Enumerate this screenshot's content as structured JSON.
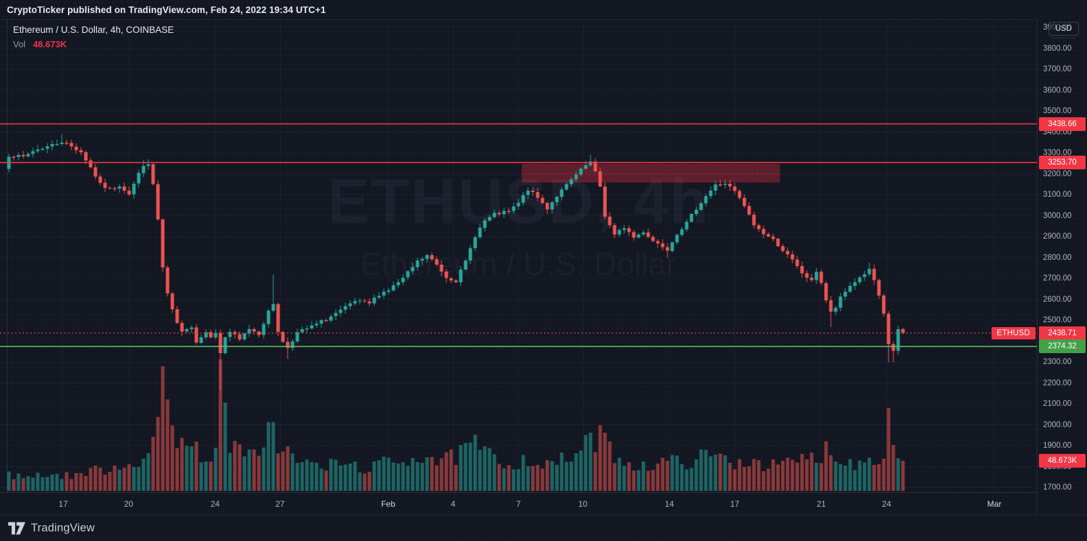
{
  "banner": {
    "text": "CryptoTicker published on TradingView.com, Feb 24, 2022 19:34 UTC+1"
  },
  "legend": {
    "title": "Ethereum / U.S. Dollar, 4h, COINBASE",
    "vol_label": "Vol",
    "vol_value": "48.673K"
  },
  "watermark": {
    "line1": "ETHUSD, 4h",
    "line2": "Ethereum / U.S. Dollar"
  },
  "footer": {
    "brand": "TradingView"
  },
  "axis": {
    "currency_button": "USD",
    "price_max": 3900,
    "price_min": 1700,
    "price_step": 100,
    "time_ticks": [
      {
        "label": "17",
        "i": 11.3
      },
      {
        "label": "20",
        "i": 24.9
      },
      {
        "label": "24",
        "i": 42.9
      },
      {
        "label": "27",
        "i": 56.4
      },
      {
        "label": "Feb",
        "i": 78.9,
        "month": true
      },
      {
        "label": "4",
        "i": 92.4
      },
      {
        "label": "7",
        "i": 106
      },
      {
        "label": "10",
        "i": 119.4
      },
      {
        "label": "14",
        "i": 137.4
      },
      {
        "label": "17",
        "i": 151
      },
      {
        "label": "21",
        "i": 169
      },
      {
        "label": "24",
        "i": 182.6
      },
      {
        "label": "Mar",
        "i": 205,
        "month": true
      }
    ]
  },
  "chart_data": {
    "type": "candlestick+volume",
    "symbol": "ETHUSD",
    "name": "Ethereum / U.S. Dollar",
    "interval": "4h",
    "exchange": "COINBASE",
    "currency": "USD",
    "last_close": 2438.71,
    "last_volume_display": "48.673K",
    "last_volume_k": 48.673,
    "ylim": [
      1700,
      3900
    ],
    "grid": true,
    "candle_count": 187,
    "close_anchors": [
      [
        0,
        3290
      ],
      [
        3,
        3280
      ],
      [
        5,
        3310
      ],
      [
        8,
        3330
      ],
      [
        11,
        3355
      ],
      [
        13,
        3330
      ],
      [
        15,
        3305
      ],
      [
        17,
        3230
      ],
      [
        19,
        3150
      ],
      [
        21,
        3125
      ],
      [
        23,
        3145
      ],
      [
        25,
        3105
      ],
      [
        27,
        3200
      ],
      [
        28,
        3245
      ],
      [
        29,
        3240
      ],
      [
        30,
        3150
      ],
      [
        31,
        2980
      ],
      [
        32,
        2750
      ],
      [
        33,
        2620
      ],
      [
        34,
        2550
      ],
      [
        35,
        2480
      ],
      [
        36,
        2440
      ],
      [
        37,
        2465
      ],
      [
        38,
        2470
      ],
      [
        39,
        2395
      ],
      [
        40,
        2420
      ],
      [
        41,
        2450
      ],
      [
        42,
        2425
      ],
      [
        43,
        2435
      ],
      [
        44,
        2345
      ],
      [
        45,
        2420
      ],
      [
        46,
        2445
      ],
      [
        48,
        2405
      ],
      [
        50,
        2460
      ],
      [
        52,
        2435
      ],
      [
        54,
        2540
      ],
      [
        55,
        2580
      ],
      [
        56,
        2450
      ],
      [
        57,
        2395
      ],
      [
        58,
        2370
      ],
      [
        60,
        2440
      ],
      [
        63,
        2470
      ],
      [
        66,
        2505
      ],
      [
        69,
        2545
      ],
      [
        72,
        2590
      ],
      [
        75,
        2580
      ],
      [
        77,
        2625
      ],
      [
        79,
        2645
      ],
      [
        82,
        2700
      ],
      [
        85,
        2780
      ],
      [
        87,
        2810
      ],
      [
        89,
        2765
      ],
      [
        91,
        2705
      ],
      [
        93,
        2690
      ],
      [
        95,
        2780
      ],
      [
        97,
        2905
      ],
      [
        99,
        2975
      ],
      [
        101,
        3005
      ],
      [
        104,
        3020
      ],
      [
        106,
        3060
      ],
      [
        108,
        3125
      ],
      [
        110,
        3085
      ],
      [
        112,
        3035
      ],
      [
        114,
        3095
      ],
      [
        116,
        3145
      ],
      [
        118,
        3195
      ],
      [
        120,
        3240
      ],
      [
        121,
        3255
      ],
      [
        122,
        3205
      ],
      [
        123,
        3140
      ],
      [
        124,
        3000
      ],
      [
        126,
        2905
      ],
      [
        128,
        2945
      ],
      [
        130,
        2895
      ],
      [
        132,
        2925
      ],
      [
        134,
        2880
      ],
      [
        136,
        2855
      ],
      [
        137,
        2840
      ],
      [
        139,
        2915
      ],
      [
        141,
        2965
      ],
      [
        143,
        3035
      ],
      [
        145,
        3095
      ],
      [
        147,
        3145
      ],
      [
        149,
        3155
      ],
      [
        151,
        3115
      ],
      [
        153,
        3045
      ],
      [
        155,
        2955
      ],
      [
        157,
        2915
      ],
      [
        159,
        2885
      ],
      [
        161,
        2835
      ],
      [
        163,
        2785
      ],
      [
        165,
        2725
      ],
      [
        167,
        2685
      ],
      [
        168,
        2735
      ],
      [
        169,
        2680
      ],
      [
        170,
        2595
      ],
      [
        171,
        2535
      ],
      [
        172,
        2560
      ],
      [
        173,
        2605
      ],
      [
        175,
        2665
      ],
      [
        177,
        2705
      ],
      [
        179,
        2740
      ],
      [
        180,
        2690
      ],
      [
        181,
        2610
      ],
      [
        182,
        2525
      ],
      [
        183,
        2385
      ],
      [
        184,
        2355
      ],
      [
        185,
        2455
      ],
      [
        186,
        2438.71
      ]
    ],
    "wick_overrides": [
      {
        "i": 11,
        "high": 3390
      },
      {
        "i": 28,
        "high": 3268
      },
      {
        "i": 44,
        "low": 2165
      },
      {
        "i": 55,
        "high": 2720
      },
      {
        "i": 58,
        "low": 2315
      },
      {
        "i": 121,
        "high": 3292
      },
      {
        "i": 137,
        "low": 2798
      },
      {
        "i": 171,
        "low": 2468
      },
      {
        "i": 179,
        "high": 2775
      },
      {
        "i": 183,
        "low": 2298
      },
      {
        "i": 184,
        "low": 2300
      }
    ],
    "volume_anchors_k": [
      [
        0,
        26
      ],
      [
        4,
        22
      ],
      [
        8,
        28
      ],
      [
        12,
        24
      ],
      [
        16,
        30
      ],
      [
        20,
        36
      ],
      [
        24,
        42
      ],
      [
        27,
        50
      ],
      [
        29,
        55
      ],
      [
        30,
        70
      ],
      [
        31,
        110
      ],
      [
        32,
        185
      ],
      [
        33,
        150
      ],
      [
        34,
        115
      ],
      [
        35,
        90
      ],
      [
        36,
        95
      ],
      [
        37,
        70
      ],
      [
        39,
        65
      ],
      [
        41,
        55
      ],
      [
        43,
        70
      ],
      [
        44,
        190
      ],
      [
        45,
        115
      ],
      [
        46,
        80
      ],
      [
        48,
        60
      ],
      [
        50,
        55
      ],
      [
        52,
        58
      ],
      [
        54,
        130
      ],
      [
        55,
        95
      ],
      [
        56,
        75
      ],
      [
        58,
        62
      ],
      [
        60,
        48
      ],
      [
        63,
        42
      ],
      [
        66,
        40
      ],
      [
        69,
        44
      ],
      [
        72,
        40
      ],
      [
        75,
        36
      ],
      [
        77,
        42
      ],
      [
        79,
        46
      ],
      [
        82,
        50
      ],
      [
        85,
        56
      ],
      [
        87,
        60
      ],
      [
        89,
        48
      ],
      [
        91,
        50
      ],
      [
        93,
        55
      ],
      [
        95,
        65
      ],
      [
        97,
        75
      ],
      [
        99,
        62
      ],
      [
        101,
        50
      ],
      [
        104,
        44
      ],
      [
        106,
        48
      ],
      [
        108,
        52
      ],
      [
        110,
        44
      ],
      [
        112,
        40
      ],
      [
        114,
        46
      ],
      [
        116,
        52
      ],
      [
        118,
        58
      ],
      [
        120,
        72
      ],
      [
        121,
        80
      ],
      [
        123,
        88
      ],
      [
        124,
        75
      ],
      [
        126,
        62
      ],
      [
        128,
        48
      ],
      [
        130,
        44
      ],
      [
        132,
        40
      ],
      [
        134,
        42
      ],
      [
        136,
        44
      ],
      [
        137,
        50
      ],
      [
        139,
        46
      ],
      [
        141,
        48
      ],
      [
        143,
        52
      ],
      [
        145,
        55
      ],
      [
        147,
        58
      ],
      [
        149,
        50
      ],
      [
        151,
        46
      ],
      [
        153,
        48
      ],
      [
        155,
        52
      ],
      [
        157,
        44
      ],
      [
        159,
        40
      ],
      [
        161,
        42
      ],
      [
        163,
        46
      ],
      [
        165,
        50
      ],
      [
        167,
        54
      ],
      [
        168,
        48
      ],
      [
        170,
        68
      ],
      [
        171,
        72
      ],
      [
        172,
        60
      ],
      [
        173,
        52
      ],
      [
        175,
        44
      ],
      [
        177,
        48
      ],
      [
        179,
        52
      ],
      [
        181,
        56
      ],
      [
        182,
        70
      ],
      [
        183,
        118
      ],
      [
        184,
        85
      ],
      [
        185,
        60
      ],
      [
        186,
        48.673
      ]
    ],
    "levels": [
      {
        "name": "resistance-1",
        "price": 3438.66,
        "label": "3438.66",
        "line_color": "#f23645",
        "tag_color": "#f23645",
        "style": "solid"
      },
      {
        "name": "resistance-2",
        "price": 3253.7,
        "label": "3253.70",
        "line_color": "#f23645",
        "tag_color": "#f23645",
        "style": "solid"
      },
      {
        "name": "last-price",
        "price": 2438.71,
        "label": "2438.71",
        "line_color": "#f23645",
        "tag_color": "#f23645",
        "style": "dotted"
      },
      {
        "name": "support-1",
        "price": 2374.32,
        "label": "2374.32",
        "line_color": "#66bb6a",
        "tag_color": "#43a047",
        "style": "solid"
      }
    ],
    "zone": {
      "name": "supply-zone",
      "i_start": 106.7,
      "i_end": 160.4,
      "price_top": 3248,
      "price_bottom": 3158,
      "price_center_dash": 3200,
      "fill": "rgba(186,40,58,0.45)",
      "dash_color": "rgba(242,54,69,0.55)"
    },
    "colors": {
      "up": "#26a69a",
      "down": "#ef5350",
      "vol_up": "rgba(38,166,154,0.55)",
      "vol_down": "rgba(239,83,80,0.55)",
      "grid": "rgba(170,185,220,0.055)",
      "axis_text": "#b2b5be",
      "accent_red": "#f23645"
    },
    "volume_tag": {
      "label": "48.673K",
      "color": "#f23645"
    }
  }
}
